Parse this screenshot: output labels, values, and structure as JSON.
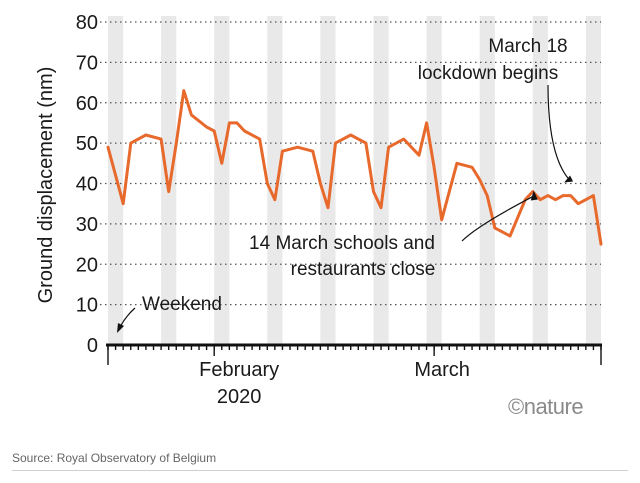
{
  "chart_data": {
    "type": "line",
    "ylabel": "Ground displacement (nm)",
    "ylim": [
      0,
      80
    ],
    "yticks": [
      0,
      10,
      20,
      30,
      40,
      50,
      60,
      70,
      80
    ],
    "xlim": [
      "2020-01-18",
      "2020-03-23"
    ],
    "x_tick_labels": [
      {
        "date": "2020-02-01",
        "label": "February",
        "sub": "2020"
      },
      {
        "date": "2020-03-01",
        "label": "March",
        "sub": ""
      }
    ],
    "grid": "horizontal dotted",
    "weekend_shading": true,
    "weekend_dates": [
      "2020-01-18",
      "2020-01-25",
      "2020-02-01",
      "2020-02-08",
      "2020-02-15",
      "2020-02-22",
      "2020-02-29",
      "2020-03-07",
      "2020-03-14",
      "2020-03-21"
    ],
    "series": [
      {
        "color": "#e8692c",
        "x": [
          "2020-01-18",
          "2020-01-19",
          "2020-01-20",
          "2020-01-21",
          "2020-01-23",
          "2020-01-25",
          "2020-01-26",
          "2020-01-27",
          "2020-01-28",
          "2020-01-29",
          "2020-01-31",
          "2020-02-01",
          "2020-02-02",
          "2020-02-03",
          "2020-02-04",
          "2020-02-05",
          "2020-02-07",
          "2020-02-08",
          "2020-02-09",
          "2020-02-10",
          "2020-02-12",
          "2020-02-14",
          "2020-02-15",
          "2020-02-16",
          "2020-02-17",
          "2020-02-19",
          "2020-02-21",
          "2020-02-22",
          "2020-02-23",
          "2020-02-24",
          "2020-02-26",
          "2020-02-28",
          "2020-02-29",
          "2020-03-01",
          "2020-03-02",
          "2020-03-04",
          "2020-03-06",
          "2020-03-07",
          "2020-03-08",
          "2020-03-09",
          "2020-03-11",
          "2020-03-13",
          "2020-03-14",
          "2020-03-15",
          "2020-03-16",
          "2020-03-17",
          "2020-03-18",
          "2020-03-19",
          "2020-03-20",
          "2020-03-21",
          "2020-03-22",
          "2020-03-23"
        ],
        "values": [
          49,
          42,
          35,
          50,
          52,
          51,
          38,
          50,
          63,
          57,
          54,
          53,
          45,
          55,
          55,
          53,
          51,
          40,
          36,
          48,
          49,
          48,
          40,
          34,
          50,
          52,
          50,
          38,
          34,
          49,
          51,
          47,
          55,
          44,
          31,
          45,
          44,
          41,
          37,
          29,
          27,
          36,
          38,
          36,
          37,
          36,
          37,
          37,
          35,
          36,
          37,
          25
        ]
      }
    ],
    "annotations": [
      {
        "text": "Weekend",
        "date": "2020-01-18",
        "value": 2
      },
      {
        "line1": "March 18",
        "line2": "lockdown begins",
        "date": "2020-03-18",
        "value": 40
      },
      {
        "line1": "14 March schools and",
        "line2": "restaurants close",
        "date": "2020-03-14",
        "value": 39
      }
    ]
  },
  "credit": "©nature",
  "source": "Source: Royal Observatory of Belgium"
}
